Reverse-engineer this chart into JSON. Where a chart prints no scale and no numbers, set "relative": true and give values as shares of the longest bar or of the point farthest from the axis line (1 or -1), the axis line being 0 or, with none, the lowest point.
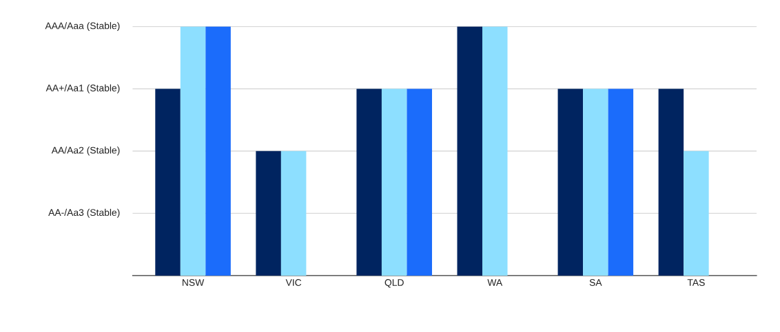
{
  "chart_data": {
    "type": "bar",
    "relative": true,
    "categories": [
      "NSW",
      "VIC",
      "QLD",
      "WA",
      "SA",
      "TAS"
    ],
    "series": [
      {
        "color": "#002460",
        "values": [
          0.75,
          0.5,
          0.75,
          1,
          0.75,
          0.75
        ]
      },
      {
        "color": "#8ddfff",
        "values": [
          1,
          0.5,
          0.75,
          1,
          0.75,
          0.5
        ]
      },
      {
        "color": "#1b6cfb",
        "values": [
          1,
          null,
          0.75,
          null,
          0.75,
          null
        ]
      }
    ],
    "annotations": [
      "AA-/Aa3 (Stable)",
      "AA/Aa2 (Stable)",
      "AA+/Aa1 (Stable)",
      "AAA/Aaa (Stable)"
    ],
    "grid": "y",
    "legend": false
  }
}
